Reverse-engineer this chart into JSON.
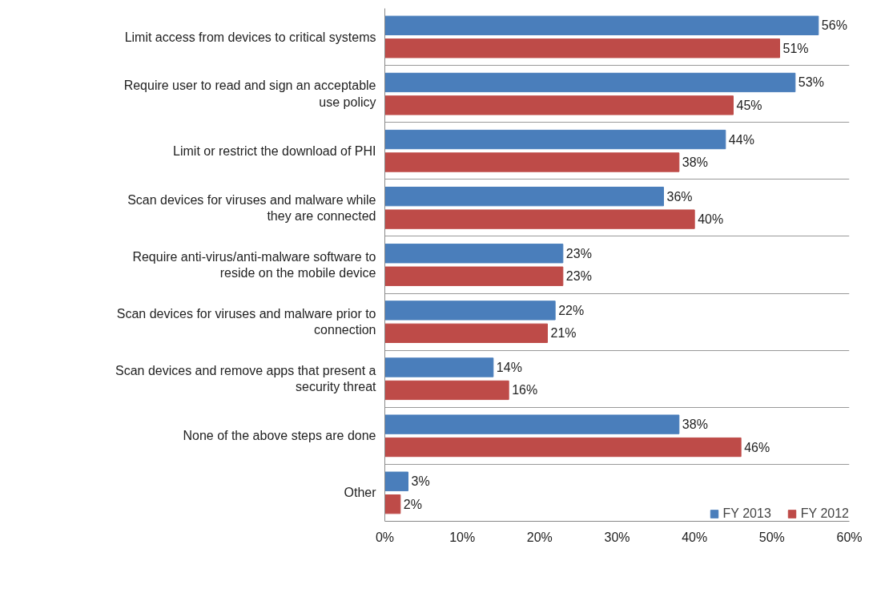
{
  "chart_data": {
    "type": "bar",
    "orientation": "horizontal",
    "categories": [
      "Limit access from devices to critical systems",
      "Require user to read and sign an acceptable use policy",
      "Limit or restrict the download of PHI",
      "Scan devices for viruses and malware while they are connected",
      "Require anti-virus/anti-malware software to reside on the mobile device",
      "Scan devices for viruses and malware prior to connection",
      "Scan devices and remove apps that present a security threat",
      "None of the above steps are done",
      "Other"
    ],
    "series": [
      {
        "name": "FY 2013",
        "color": "#4a7ebb",
        "values": [
          56,
          53,
          44,
          36,
          23,
          22,
          14,
          38,
          3
        ],
        "value_labels": [
          "56%",
          "53%",
          "44%",
          "36%",
          "23%",
          "22%",
          "14%",
          "38%",
          "3%"
        ]
      },
      {
        "name": "FY 2012",
        "color": "#be4b48",
        "values": [
          51,
          45,
          38,
          40,
          23,
          21,
          16,
          46,
          2
        ],
        "value_labels": [
          "51%",
          "45%",
          "38%",
          "40%",
          "23%",
          "21%",
          "16%",
          "46%",
          "2%"
        ]
      }
    ],
    "xlim": [
      0,
      60
    ],
    "xticks": [
      {
        "value": 0,
        "label": "0%"
      },
      {
        "value": 10,
        "label": "10%"
      },
      {
        "value": 20,
        "label": "20%"
      },
      {
        "value": 30,
        "label": "30%"
      },
      {
        "value": 40,
        "label": "40%"
      },
      {
        "value": 50,
        "label": "50%"
      },
      {
        "value": 60,
        "label": "60%"
      }
    ],
    "grid": "y",
    "legend": "bottom right"
  }
}
